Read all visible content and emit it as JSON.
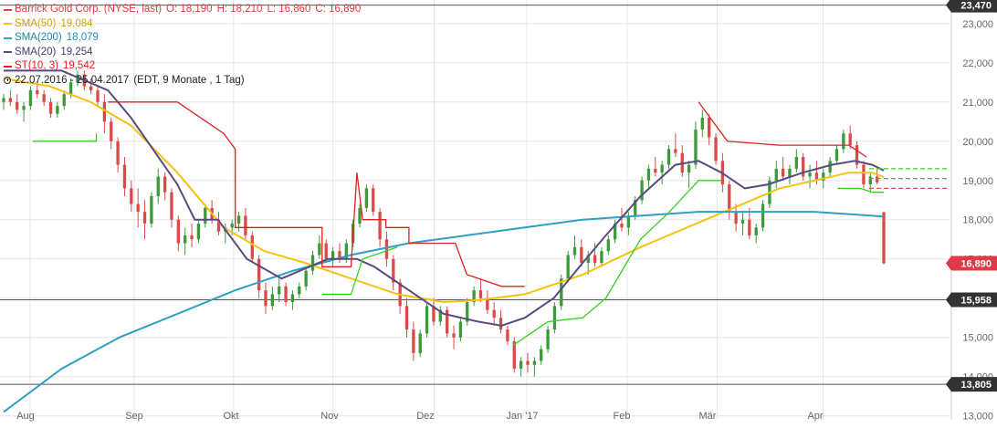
{
  "chart_data": {
    "type": "candlestick",
    "title": "Barrick Gold Corp. (NYSE, last)",
    "ohlc_header": {
      "open": "O: 18,190",
      "high": "H: 18,210",
      "low": "L: 16,860",
      "close": "C: 16,890"
    },
    "period_label": "22.07.2016 - 25.04.2017",
    "period_note": "(EDT, 9 Monate , 1 Tag)",
    "yaxis_ticks": [
      "23,000",
      "22,000",
      "21,000",
      "20,000",
      "19,000",
      "18,000",
      "17,000",
      "16,000",
      "15,000",
      "14,000",
      "13,000"
    ],
    "ylim": [
      12.9,
      23.6
    ],
    "xaxis_ticks": [
      "Aug",
      "Sep",
      "Okt",
      "Nov",
      "Dez",
      "Jan '17",
      "Feb",
      "Mär",
      "Apr"
    ],
    "price_tags": [
      {
        "label": "23,470",
        "value": 23.47,
        "bg": "#333333",
        "fg": "#ffffff"
      },
      {
        "label": "16,890",
        "value": 16.89,
        "bg": "#e0394a",
        "fg": "#ffffff"
      },
      {
        "label": "15,958",
        "value": 15.958,
        "bg": "#333333",
        "fg": "#ffffff"
      },
      {
        "label": "13,805",
        "value": 13.805,
        "bg": "#333333",
        "fg": "#ffffff"
      }
    ],
    "hlines": [
      23.47,
      15.958,
      13.805
    ],
    "series": [
      {
        "name": "SMA(50)",
        "label": "19,084",
        "color": "#f5c211",
        "points": [
          [
            0,
            21.6
          ],
          [
            8,
            21.4
          ],
          [
            15,
            21.0
          ],
          [
            22,
            20.4
          ],
          [
            30,
            19.2
          ],
          [
            38,
            17.8
          ],
          [
            45,
            17.2
          ],
          [
            52,
            16.9
          ],
          [
            60,
            16.5
          ],
          [
            68,
            16.1
          ],
          [
            76,
            15.9
          ],
          [
            82,
            15.95
          ],
          [
            90,
            16.1
          ],
          [
            100,
            16.6
          ],
          [
            110,
            17.3
          ],
          [
            118,
            17.8
          ],
          [
            126,
            18.3
          ],
          [
            134,
            18.8
          ],
          [
            140,
            19.0
          ],
          [
            146,
            19.2
          ],
          [
            150,
            19.2
          ],
          [
            152,
            19.084
          ]
        ]
      },
      {
        "name": "SMA(200)",
        "label": "18,079",
        "color": "#2f9fc4",
        "points": [
          [
            0,
            13.1
          ],
          [
            10,
            14.2
          ],
          [
            20,
            15.0
          ],
          [
            30,
            15.6
          ],
          [
            40,
            16.2
          ],
          [
            50,
            16.7
          ],
          [
            60,
            17.1
          ],
          [
            70,
            17.4
          ],
          [
            80,
            17.6
          ],
          [
            90,
            17.8
          ],
          [
            100,
            18.0
          ],
          [
            110,
            18.1
          ],
          [
            120,
            18.2
          ],
          [
            130,
            18.2
          ],
          [
            140,
            18.2
          ],
          [
            150,
            18.1
          ],
          [
            152,
            18.079
          ]
        ]
      },
      {
        "name": "SMA(20)",
        "label": "19,254",
        "color": "#5b4a80",
        "points": [
          [
            0,
            21.8
          ],
          [
            10,
            21.8
          ],
          [
            18,
            21.3
          ],
          [
            22,
            20.6
          ],
          [
            30,
            18.9
          ],
          [
            33,
            18.0
          ],
          [
            37,
            18.0
          ],
          [
            42,
            17.0
          ],
          [
            48,
            16.5
          ],
          [
            56,
            17.0
          ],
          [
            61,
            17.0
          ],
          [
            64,
            16.8
          ],
          [
            70,
            16.2
          ],
          [
            76,
            15.6
          ],
          [
            82,
            15.4
          ],
          [
            86,
            15.3
          ],
          [
            90,
            15.5
          ],
          [
            95,
            16.0
          ],
          [
            100,
            16.9
          ],
          [
            104,
            17.6
          ],
          [
            110,
            18.6
          ],
          [
            116,
            19.4
          ],
          [
            120,
            19.5
          ],
          [
            124,
            19.2
          ],
          [
            128,
            18.8
          ],
          [
            132,
            18.9
          ],
          [
            138,
            19.2
          ],
          [
            143,
            19.4
          ],
          [
            147,
            19.5
          ],
          [
            150,
            19.4
          ],
          [
            152,
            19.254
          ]
        ]
      },
      {
        "name": "ST(10, 3)",
        "label": "19,542",
        "color": "#e02020",
        "type": "supertrend",
        "segments": [
          {
            "color": "#33d11f",
            "points": [
              [
                5,
                20.0
              ],
              [
                16,
                20.0
              ],
              [
                16,
                20.2
              ]
            ]
          },
          {
            "color": "#e02020",
            "points": [
              [
                18,
                21.0
              ],
              [
                30,
                21.0
              ],
              [
                38,
                20.2
              ],
              [
                40,
                19.8
              ],
              [
                40,
                17.8
              ],
              [
                55,
                17.8
              ],
              [
                55,
                16.8
              ],
              [
                60,
                16.8
              ],
              [
                61,
                19.2
              ],
              [
                62,
                18.0
              ],
              [
                66,
                18.0
              ],
              [
                66,
                17.8
              ],
              [
                70,
                17.8
              ],
              [
                70,
                17.4
              ],
              [
                78,
                17.4
              ],
              [
                80,
                16.6
              ],
              [
                86,
                16.3
              ],
              [
                90,
                16.3
              ]
            ]
          },
          {
            "color": "#33d11f",
            "points": [
              [
                55,
                16.1
              ],
              [
                60,
                16.1
              ],
              [
                62,
                17.0
              ],
              [
                68,
                17.3
              ]
            ]
          },
          {
            "color": "#33d11f",
            "points": [
              [
                88,
                14.8
              ],
              [
                94,
                15.4
              ],
              [
                100,
                15.5
              ],
              [
                104,
                16.0
              ],
              [
                110,
                17.5
              ],
              [
                115,
                18.2
              ],
              [
                120,
                19.0
              ],
              [
                124,
                19.0
              ]
            ]
          },
          {
            "color": "#e02020",
            "points": [
              [
                120,
                21.0
              ],
              [
                125,
                20.0
              ],
              [
                134,
                19.9
              ],
              [
                146,
                19.9
              ],
              [
                149,
                19.6
              ]
            ]
          },
          {
            "color": "#33d11f",
            "points": [
              [
                144,
                18.8
              ],
              [
                148,
                18.8
              ],
              [
                150,
                18.7
              ],
              [
                152,
                18.7
              ]
            ]
          }
        ]
      }
    ],
    "candles": [
      [
        21.0,
        21.2,
        20.8,
        21.1
      ],
      [
        21.1,
        21.3,
        20.9,
        21.0
      ],
      [
        21.0,
        21.2,
        20.7,
        20.8
      ],
      [
        20.8,
        21.0,
        20.5,
        20.9
      ],
      [
        20.9,
        21.4,
        20.8,
        21.3
      ],
      [
        21.3,
        21.5,
        21.1,
        21.2
      ],
      [
        21.2,
        21.3,
        20.9,
        21.0
      ],
      [
        21.0,
        21.1,
        20.6,
        20.7
      ],
      [
        20.7,
        21.0,
        20.6,
        20.9
      ],
      [
        20.9,
        21.3,
        20.8,
        21.2
      ],
      [
        21.2,
        21.6,
        21.1,
        21.5
      ],
      [
        21.5,
        21.8,
        21.4,
        21.7
      ],
      [
        21.7,
        21.8,
        21.3,
        21.4
      ],
      [
        21.4,
        21.6,
        21.2,
        21.3
      ],
      [
        21.3,
        21.4,
        20.9,
        21.0
      ],
      [
        21.0,
        21.2,
        20.2,
        20.5
      ],
      [
        20.5,
        20.6,
        19.8,
        20.0
      ],
      [
        20.0,
        20.1,
        19.2,
        19.4
      ],
      [
        19.4,
        19.6,
        18.6,
        18.8
      ],
      [
        18.8,
        19.0,
        18.2,
        18.4
      ],
      [
        18.4,
        18.8,
        17.8,
        18.2
      ],
      [
        18.2,
        18.5,
        17.5,
        17.9
      ],
      [
        17.9,
        18.7,
        17.8,
        18.6
      ],
      [
        18.6,
        19.3,
        18.4,
        19.1
      ],
      [
        19.1,
        19.2,
        18.5,
        18.7
      ],
      [
        18.7,
        18.8,
        17.8,
        18.0
      ],
      [
        18.0,
        18.1,
        17.2,
        17.4
      ],
      [
        17.4,
        17.8,
        17.1,
        17.6
      ],
      [
        17.6,
        17.9,
        17.3,
        17.5
      ],
      [
        17.5,
        18.0,
        17.4,
        17.9
      ],
      [
        17.9,
        18.4,
        17.8,
        18.3
      ],
      [
        18.3,
        18.5,
        17.9,
        18.0
      ],
      [
        18.0,
        18.2,
        17.6,
        17.7
      ],
      [
        17.7,
        17.9,
        17.4,
        17.8
      ],
      [
        17.8,
        18.0,
        17.6,
        17.9
      ],
      [
        17.9,
        18.2,
        17.7,
        18.1
      ],
      [
        18.1,
        18.3,
        17.5,
        17.6
      ],
      [
        17.6,
        17.7,
        16.9,
        17.0
      ],
      [
        17.0,
        17.1,
        16.0,
        16.2
      ],
      [
        16.2,
        16.4,
        15.6,
        15.8
      ],
      [
        15.8,
        16.3,
        15.7,
        16.1
      ],
      [
        16.1,
        16.5,
        15.9,
        16.3
      ],
      [
        16.3,
        16.4,
        15.8,
        15.9
      ],
      [
        15.9,
        16.2,
        15.7,
        16.1
      ],
      [
        16.1,
        16.4,
        16.0,
        16.3
      ],
      [
        16.3,
        16.8,
        16.2,
        16.7
      ],
      [
        16.7,
        17.2,
        16.6,
        17.1
      ],
      [
        17.1,
        17.6,
        17.0,
        17.4
      ],
      [
        17.4,
        17.5,
        16.9,
        17.0
      ],
      [
        17.0,
        17.3,
        16.8,
        17.2
      ],
      [
        17.2,
        17.4,
        16.9,
        17.0
      ],
      [
        17.0,
        17.5,
        16.9,
        17.4
      ],
      [
        17.4,
        18.0,
        17.3,
        17.9
      ],
      [
        17.9,
        18.4,
        17.8,
        18.3
      ],
      [
        18.3,
        18.9,
        18.2,
        18.8
      ],
      [
        18.8,
        18.9,
        18.1,
        18.2
      ],
      [
        18.2,
        18.3,
        17.3,
        17.5
      ],
      [
        17.5,
        17.7,
        16.8,
        17.0
      ],
      [
        17.0,
        17.1,
        16.2,
        16.4
      ],
      [
        16.4,
        16.5,
        15.6,
        15.8
      ],
      [
        15.8,
        16.0,
        15.0,
        15.2
      ],
      [
        15.2,
        15.4,
        14.4,
        14.6
      ],
      [
        14.6,
        15.2,
        14.5,
        15.1
      ],
      [
        15.1,
        15.9,
        15.0,
        15.8
      ],
      [
        15.8,
        16.0,
        15.3,
        15.4
      ],
      [
        15.4,
        15.8,
        15.3,
        15.7
      ],
      [
        15.7,
        15.8,
        15.0,
        15.1
      ],
      [
        15.1,
        15.3,
        14.7,
        15.0
      ],
      [
        15.0,
        15.5,
        14.9,
        15.4
      ],
      [
        15.4,
        16.0,
        15.3,
        15.9
      ],
      [
        15.9,
        16.3,
        15.8,
        16.2
      ],
      [
        16.2,
        16.5,
        15.9,
        16.0
      ],
      [
        16.0,
        16.2,
        15.6,
        15.7
      ],
      [
        15.7,
        15.9,
        15.3,
        15.5
      ],
      [
        15.5,
        15.7,
        15.1,
        15.2
      ],
      [
        15.2,
        15.3,
        14.8,
        14.9
      ],
      [
        14.9,
        15.0,
        14.1,
        14.2
      ],
      [
        14.2,
        14.5,
        14.0,
        14.4
      ],
      [
        14.4,
        14.6,
        14.1,
        14.3
      ],
      [
        14.3,
        14.5,
        14.0,
        14.4
      ],
      [
        14.4,
        14.8,
        14.3,
        14.7
      ],
      [
        14.7,
        15.3,
        14.6,
        15.2
      ],
      [
        15.2,
        15.9,
        15.1,
        15.8
      ],
      [
        15.8,
        16.6,
        15.7,
        16.5
      ],
      [
        16.5,
        17.2,
        16.4,
        17.1
      ],
      [
        17.1,
        17.6,
        17.0,
        17.3
      ],
      [
        17.3,
        17.5,
        16.8,
        16.9
      ],
      [
        16.9,
        17.2,
        16.6,
        17.1
      ],
      [
        17.1,
        17.4,
        16.8,
        16.9
      ],
      [
        16.9,
        17.3,
        16.8,
        17.2
      ],
      [
        17.2,
        17.6,
        17.1,
        17.5
      ],
      [
        17.5,
        18.0,
        17.4,
        17.9
      ],
      [
        17.9,
        18.3,
        17.7,
        17.8
      ],
      [
        17.8,
        18.2,
        17.6,
        18.1
      ],
      [
        18.1,
        18.6,
        18.0,
        18.5
      ],
      [
        18.5,
        19.1,
        18.4,
        19.0
      ],
      [
        19.0,
        19.4,
        18.8,
        19.3
      ],
      [
        19.3,
        19.6,
        19.1,
        19.2
      ],
      [
        19.2,
        19.5,
        18.9,
        19.4
      ],
      [
        19.4,
        19.9,
        19.3,
        19.8
      ],
      [
        19.8,
        20.2,
        19.6,
        19.7
      ],
      [
        19.7,
        19.9,
        19.1,
        19.2
      ],
      [
        19.2,
        19.5,
        18.8,
        19.4
      ],
      [
        19.4,
        20.5,
        19.3,
        20.3
      ],
      [
        20.3,
        20.8,
        20.1,
        20.6
      ],
      [
        20.6,
        20.7,
        19.9,
        20.1
      ],
      [
        20.1,
        20.2,
        19.4,
        19.5
      ],
      [
        19.5,
        19.7,
        18.7,
        18.9
      ],
      [
        18.9,
        19.0,
        18.0,
        18.2
      ],
      [
        18.2,
        18.4,
        17.7,
        17.9
      ],
      [
        17.9,
        18.2,
        17.6,
        18.0
      ],
      [
        18.0,
        18.3,
        17.5,
        17.6
      ],
      [
        17.6,
        17.9,
        17.4,
        17.8
      ],
      [
        17.8,
        18.5,
        17.7,
        18.4
      ],
      [
        18.4,
        19.1,
        18.3,
        19.0
      ],
      [
        19.0,
        19.5,
        18.8,
        19.3
      ],
      [
        19.3,
        19.6,
        19.0,
        19.1
      ],
      [
        19.1,
        19.4,
        18.9,
        19.3
      ],
      [
        19.3,
        19.8,
        19.2,
        19.6
      ],
      [
        19.6,
        19.7,
        19.0,
        19.1
      ],
      [
        19.1,
        19.4,
        18.8,
        19.2
      ],
      [
        19.2,
        19.5,
        18.9,
        19.0
      ],
      [
        19.0,
        19.3,
        18.8,
        19.2
      ],
      [
        19.2,
        19.6,
        19.1,
        19.5
      ],
      [
        19.5,
        19.9,
        19.4,
        19.8
      ],
      [
        19.8,
        20.3,
        19.7,
        20.2
      ],
      [
        20.2,
        20.4,
        19.8,
        19.9
      ],
      [
        19.9,
        20.0,
        19.3,
        19.4
      ],
      [
        19.4,
        19.5,
        18.8,
        18.9
      ],
      [
        18.9,
        19.2,
        18.7,
        19.1
      ],
      [
        19.1,
        19.3,
        18.9,
        18.95
      ],
      [
        18.19,
        18.21,
        16.86,
        16.89
      ]
    ]
  },
  "legend": [
    {
      "name": "SMA(50)",
      "value": "19,084",
      "color": "#f5c211",
      "label_color": "#d4a10c"
    },
    {
      "name": "SMA(200)",
      "value": "18,079",
      "color": "#2f9fc4",
      "label_color": "#1f8ab0"
    },
    {
      "name": "SMA(20)",
      "value": "19,254",
      "color": "#5b4a80",
      "label_color": "#4a3d6d"
    },
    {
      "name": "ST(10, 3)",
      "value": "19,542",
      "color": "#e02020",
      "label_color": "#e02020"
    }
  ],
  "colors": {
    "up": "#3a9b3a",
    "down": "#d94b4b",
    "grid": "#e6e6e6",
    "axis_text": "#666666"
  }
}
